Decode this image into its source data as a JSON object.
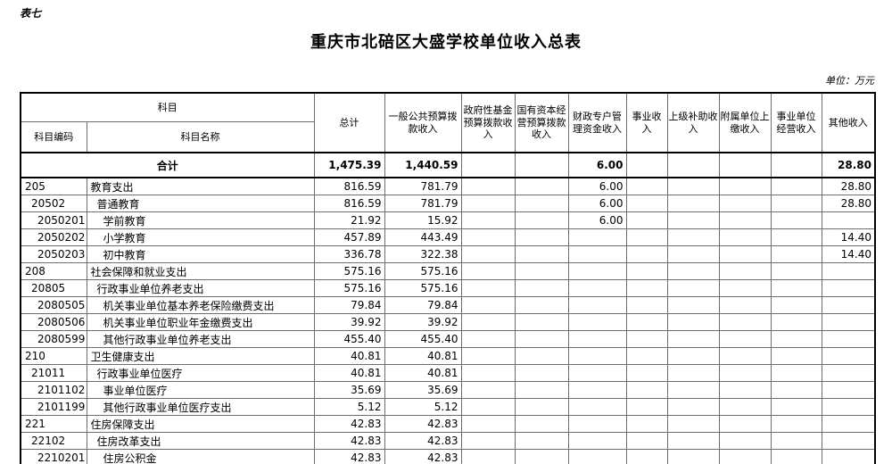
{
  "page": {
    "sheet_label": "表七",
    "title": "重庆市北碚区大盛学校单位收入总表",
    "unit_note": "单位：万元"
  },
  "table": {
    "header": {
      "subject": "科目",
      "code": "科目编码",
      "name": "科目名称",
      "total_row_label": "合计"
    },
    "columns": [
      "总计",
      "一般公共预算拨款收入",
      "政府性基金预算拨款收入",
      "国有资本经营预算拨款收入",
      "财政专户管理资金收入",
      "事业收入",
      "上级补助收入",
      "附属单位上缴收入",
      "事业单位经营收入",
      "其他收入"
    ],
    "total_row": {
      "values": [
        "1,475.39",
        "1,440.59",
        "",
        "",
        "6.00",
        "",
        "",
        "",
        "",
        "28.80"
      ]
    },
    "rows": [
      {
        "code": "205",
        "name": "教育支出",
        "level": 0,
        "values": [
          "816.59",
          "781.79",
          "",
          "",
          "6.00",
          "",
          "",
          "",
          "",
          "28.80"
        ]
      },
      {
        "code": "20502",
        "name": "普通教育",
        "level": 1,
        "values": [
          "816.59",
          "781.79",
          "",
          "",
          "6.00",
          "",
          "",
          "",
          "",
          "28.80"
        ]
      },
      {
        "code": "2050201",
        "name": "学前教育",
        "level": 2,
        "values": [
          "21.92",
          "15.92",
          "",
          "",
          "6.00",
          "",
          "",
          "",
          "",
          ""
        ]
      },
      {
        "code": "2050202",
        "name": "小学教育",
        "level": 2,
        "values": [
          "457.89",
          "443.49",
          "",
          "",
          "",
          "",
          "",
          "",
          "",
          "14.40"
        ]
      },
      {
        "code": "2050203",
        "name": "初中教育",
        "level": 2,
        "values": [
          "336.78",
          "322.38",
          "",
          "",
          "",
          "",
          "",
          "",
          "",
          "14.40"
        ]
      },
      {
        "code": "208",
        "name": "社会保障和就业支出",
        "level": 0,
        "values": [
          "575.16",
          "575.16",
          "",
          "",
          "",
          "",
          "",
          "",
          "",
          ""
        ]
      },
      {
        "code": "20805",
        "name": "行政事业单位养老支出",
        "level": 1,
        "values": [
          "575.16",
          "575.16",
          "",
          "",
          "",
          "",
          "",
          "",
          "",
          ""
        ]
      },
      {
        "code": "2080505",
        "name": "机关事业单位基本养老保险缴费支出",
        "level": 2,
        "values": [
          "79.84",
          "79.84",
          "",
          "",
          "",
          "",
          "",
          "",
          "",
          ""
        ]
      },
      {
        "code": "2080506",
        "name": "机关事业单位职业年金缴费支出",
        "level": 2,
        "values": [
          "39.92",
          "39.92",
          "",
          "",
          "",
          "",
          "",
          "",
          "",
          ""
        ]
      },
      {
        "code": "2080599",
        "name": "其他行政事业单位养老支出",
        "level": 2,
        "values": [
          "455.40",
          "455.40",
          "",
          "",
          "",
          "",
          "",
          "",
          "",
          ""
        ]
      },
      {
        "code": "210",
        "name": "卫生健康支出",
        "level": 0,
        "values": [
          "40.81",
          "40.81",
          "",
          "",
          "",
          "",
          "",
          "",
          "",
          ""
        ]
      },
      {
        "code": "21011",
        "name": "行政事业单位医疗",
        "level": 1,
        "values": [
          "40.81",
          "40.81",
          "",
          "",
          "",
          "",
          "",
          "",
          "",
          ""
        ]
      },
      {
        "code": "2101102",
        "name": "事业单位医疗",
        "level": 2,
        "values": [
          "35.69",
          "35.69",
          "",
          "",
          "",
          "",
          "",
          "",
          "",
          ""
        ]
      },
      {
        "code": "2101199",
        "name": "其他行政事业单位医疗支出",
        "level": 2,
        "values": [
          "5.12",
          "5.12",
          "",
          "",
          "",
          "",
          "",
          "",
          "",
          ""
        ]
      },
      {
        "code": "221",
        "name": "住房保障支出",
        "level": 0,
        "values": [
          "42.83",
          "42.83",
          "",
          "",
          "",
          "",
          "",
          "",
          "",
          ""
        ]
      },
      {
        "code": "22102",
        "name": "住房改革支出",
        "level": 1,
        "values": [
          "42.83",
          "42.83",
          "",
          "",
          "",
          "",
          "",
          "",
          "",
          ""
        ]
      },
      {
        "code": "2210201",
        "name": "住房公积金",
        "level": 2,
        "values": [
          "42.83",
          "42.83",
          "",
          "",
          "",
          "",
          "",
          "",
          "",
          ""
        ]
      }
    ]
  }
}
